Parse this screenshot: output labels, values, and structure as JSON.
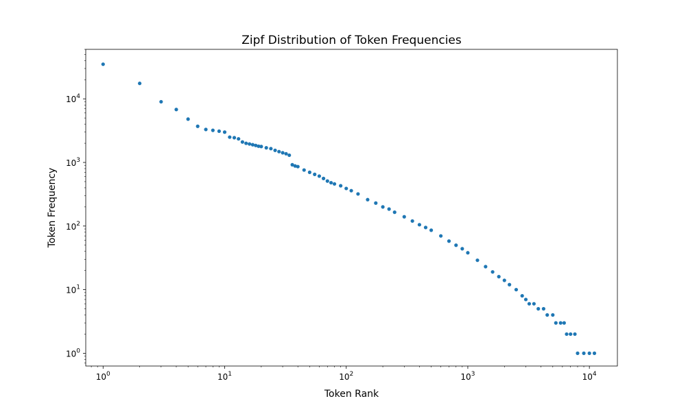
{
  "chart_data": {
    "type": "scatter",
    "title": "Zipf Distribution of Token Frequencies",
    "xlabel": "Token Rank",
    "ylabel": "Token Frequency",
    "xscale": "log",
    "yscale": "log",
    "xlim": [
      0.72,
      17000
    ],
    "ylim": [
      0.63,
      60000
    ],
    "grid": false,
    "marker_color": "#1f77b4",
    "x_ticks": [
      {
        "value": 1,
        "base": "10",
        "exp": "0"
      },
      {
        "value": 10,
        "base": "10",
        "exp": "1"
      },
      {
        "value": 100,
        "base": "10",
        "exp": "2"
      },
      {
        "value": 1000,
        "base": "10",
        "exp": "3"
      },
      {
        "value": 10000,
        "base": "10",
        "exp": "4"
      }
    ],
    "y_ticks": [
      {
        "value": 1,
        "base": "10",
        "exp": "0"
      },
      {
        "value": 10,
        "base": "10",
        "exp": "1"
      },
      {
        "value": 100,
        "base": "10",
        "exp": "2"
      },
      {
        "value": 1000,
        "base": "10",
        "exp": "3"
      },
      {
        "value": 10000,
        "base": "10",
        "exp": "4"
      }
    ],
    "points": [
      [
        1,
        35000
      ],
      [
        2,
        17500
      ],
      [
        3,
        9000
      ],
      [
        4,
        6800
      ],
      [
        5,
        4800
      ],
      [
        6,
        3700
      ],
      [
        7,
        3300
      ],
      [
        8,
        3200
      ],
      [
        9,
        3100
      ],
      [
        10,
        3000
      ],
      [
        11,
        2500
      ],
      [
        12,
        2450
      ],
      [
        13,
        2350
      ],
      [
        14,
        2100
      ],
      [
        15,
        2000
      ],
      [
        16,
        1950
      ],
      [
        17,
        1900
      ],
      [
        18,
        1850
      ],
      [
        19,
        1800
      ],
      [
        20,
        1780
      ],
      [
        22,
        1700
      ],
      [
        24,
        1650
      ],
      [
        26,
        1550
      ],
      [
        28,
        1480
      ],
      [
        30,
        1420
      ],
      [
        32,
        1370
      ],
      [
        34,
        1300
      ],
      [
        36,
        920
      ],
      [
        38,
        880
      ],
      [
        40,
        860
      ],
      [
        45,
        760
      ],
      [
        50,
        700
      ],
      [
        55,
        650
      ],
      [
        60,
        610
      ],
      [
        65,
        560
      ],
      [
        70,
        510
      ],
      [
        75,
        480
      ],
      [
        80,
        460
      ],
      [
        90,
        430
      ],
      [
        100,
        390
      ],
      [
        110,
        360
      ],
      [
        125,
        320
      ],
      [
        150,
        260
      ],
      [
        175,
        230
      ],
      [
        200,
        200
      ],
      [
        225,
        185
      ],
      [
        250,
        165
      ],
      [
        300,
        140
      ],
      [
        350,
        120
      ],
      [
        400,
        105
      ],
      [
        450,
        95
      ],
      [
        500,
        86
      ],
      [
        600,
        70
      ],
      [
        700,
        58
      ],
      [
        800,
        50
      ],
      [
        900,
        44
      ],
      [
        1000,
        38
      ],
      [
        1200,
        29
      ],
      [
        1400,
        23
      ],
      [
        1600,
        19
      ],
      [
        1800,
        16
      ],
      [
        2000,
        14
      ],
      [
        2200,
        12
      ],
      [
        2500,
        10
      ],
      [
        2800,
        8
      ],
      [
        3000,
        7
      ],
      [
        3200,
        6
      ],
      [
        3500,
        6
      ],
      [
        3800,
        5
      ],
      [
        4200,
        5
      ],
      [
        4500,
        4
      ],
      [
        5000,
        4
      ],
      [
        5300,
        3
      ],
      [
        5800,
        3
      ],
      [
        6200,
        3
      ],
      [
        6500,
        2
      ],
      [
        7000,
        2
      ],
      [
        7600,
        2
      ],
      [
        8000,
        1
      ],
      [
        9000,
        1
      ],
      [
        10000,
        1
      ],
      [
        11000,
        1
      ]
    ]
  }
}
